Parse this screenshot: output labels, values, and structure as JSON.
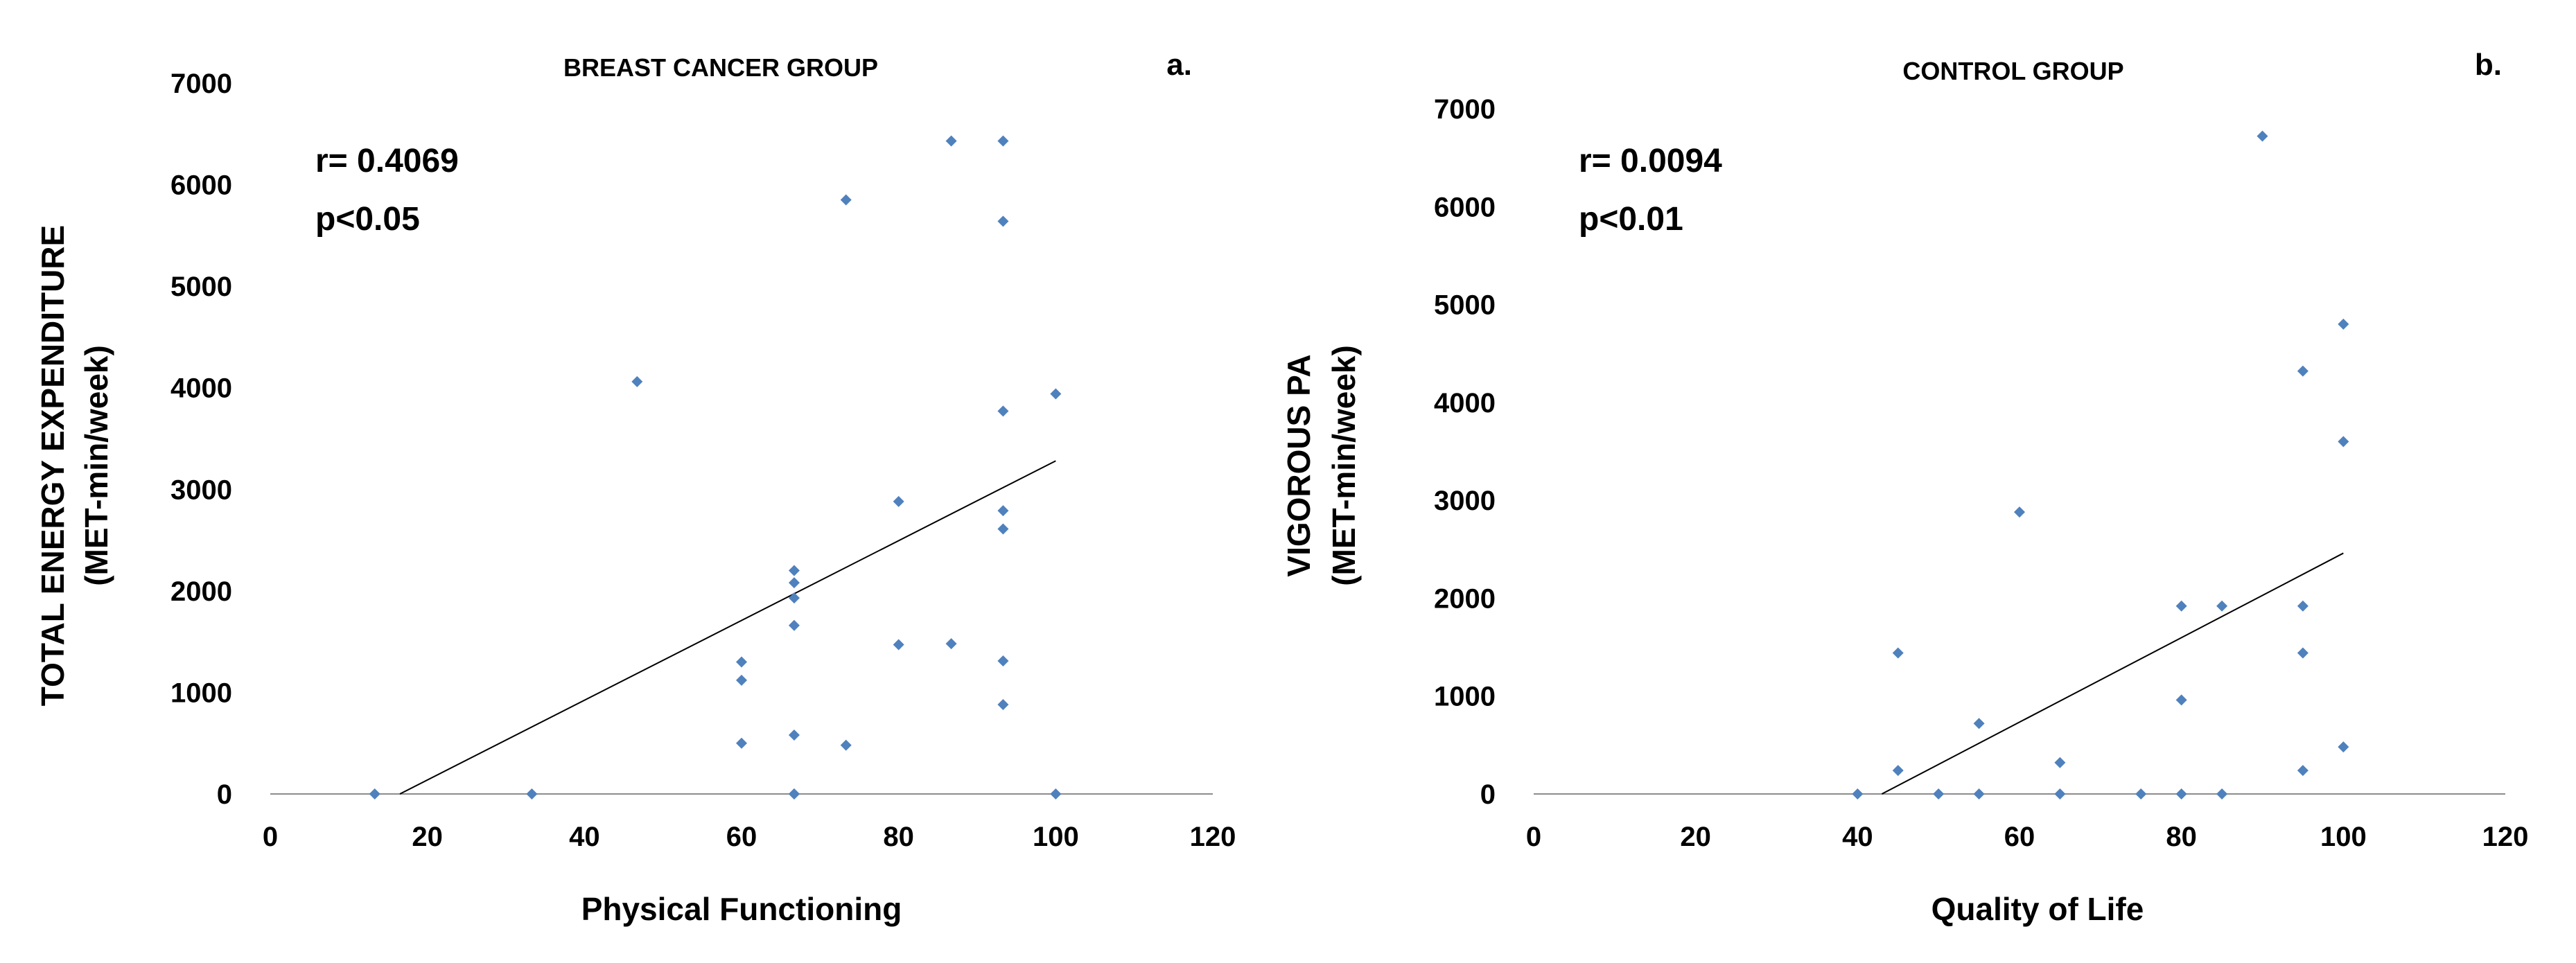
{
  "chart_data": [
    {
      "type": "scatter",
      "panel_label": "a.",
      "title": "BREAST CANCER GROUP",
      "xlabel": "Physical Functioning",
      "ylabel_line1": "TOTAL ENERGY EXPENDITURE",
      "ylabel_line2": "(MET-min/week)",
      "xlim": [
        0,
        120
      ],
      "ylim": [
        0,
        7000
      ],
      "x_ticks": [
        0,
        20,
        40,
        60,
        80,
        100,
        120
      ],
      "y_ticks": [
        0,
        1000,
        2000,
        3000,
        4000,
        5000,
        6000,
        7000
      ],
      "annotation_r": "r= 0.4069",
      "annotation_p": "p<0.05",
      "trendline": {
        "x": [
          16.5,
          100
        ],
        "y": [
          0,
          3280
        ]
      },
      "grid": false,
      "marker_color": "#4f81bd",
      "x": [
        13.3,
        33.3,
        46.7,
        60,
        60,
        60,
        66.7,
        66.7,
        66.7,
        66.7,
        66.7,
        66.7,
        66.7,
        73.3,
        73.3,
        80,
        80,
        86.7,
        86.7,
        93.3,
        93.3,
        93.3,
        93.3,
        93.3,
        93.3,
        93.3,
        100,
        100
      ],
      "y": [
        0,
        0,
        4060,
        1300,
        1120,
        500,
        2200,
        2080,
        1930,
        1660,
        580,
        0,
        0,
        5850,
        480,
        2880,
        1470,
        6430,
        1480,
        6430,
        5640,
        3770,
        2790,
        2610,
        1310,
        880,
        3940,
        0
      ]
    },
    {
      "type": "scatter",
      "panel_label": "b.",
      "title": "CONTROL GROUP",
      "xlabel": "Quality of Life",
      "ylabel_line1": "VIGOROUS PA",
      "ylabel_line2": "(MET-min/week)",
      "xlim": [
        0,
        120
      ],
      "ylim": [
        0,
        7000
      ],
      "x_ticks": [
        0,
        20,
        40,
        60,
        80,
        100,
        120
      ],
      "y_ticks": [
        0,
        1000,
        2000,
        3000,
        4000,
        5000,
        6000,
        7000
      ],
      "annotation_r": "r= 0.0094",
      "annotation_p": "p<0.01",
      "trendline": {
        "x": [
          43,
          100
        ],
        "y": [
          0,
          2460
        ]
      },
      "grid": false,
      "marker_color": "#4f81bd",
      "x": [
        40,
        45,
        45,
        50,
        55,
        55,
        60,
        65,
        65,
        75,
        80,
        80,
        80,
        85,
        85,
        90,
        95,
        95,
        95,
        95,
        100,
        100,
        100
      ],
      "y": [
        0,
        1440,
        240,
        0,
        720,
        0,
        2880,
        320,
        0,
        0,
        1920,
        960,
        0,
        1920,
        0,
        6720,
        4320,
        1920,
        1440,
        240,
        4800,
        3600,
        480
      ]
    }
  ]
}
